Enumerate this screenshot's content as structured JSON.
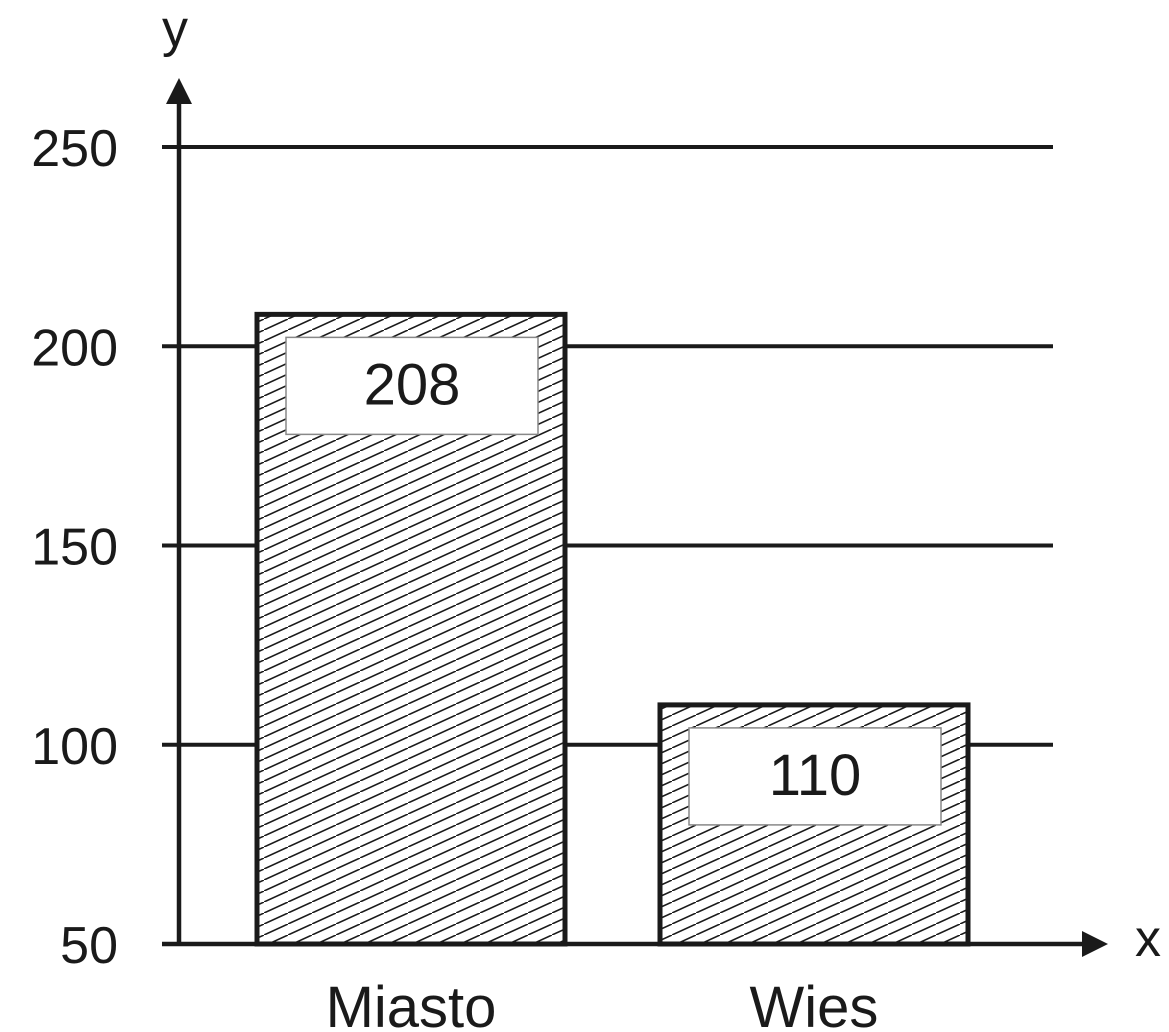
{
  "chart_data": {
    "type": "bar",
    "categories": [
      "Miasto",
      "Wies"
    ],
    "values": [
      208,
      110
    ],
    "data_labels": [
      "208",
      "110"
    ],
    "xlabel": "x",
    "ylabel": "y",
    "ylim": [
      50,
      250
    ],
    "yticks": [
      50,
      100,
      150,
      200,
      250
    ],
    "ytick_labels": [
      "50",
      "100",
      "150",
      "200",
      "250"
    ],
    "grid": true,
    "bar_fill": "diagonal-hatch",
    "colors": {
      "line": "#1a1a1a",
      "hatch": "#1a1a1a",
      "label_box": "#ffffff",
      "label_box_border": "#888888"
    }
  }
}
